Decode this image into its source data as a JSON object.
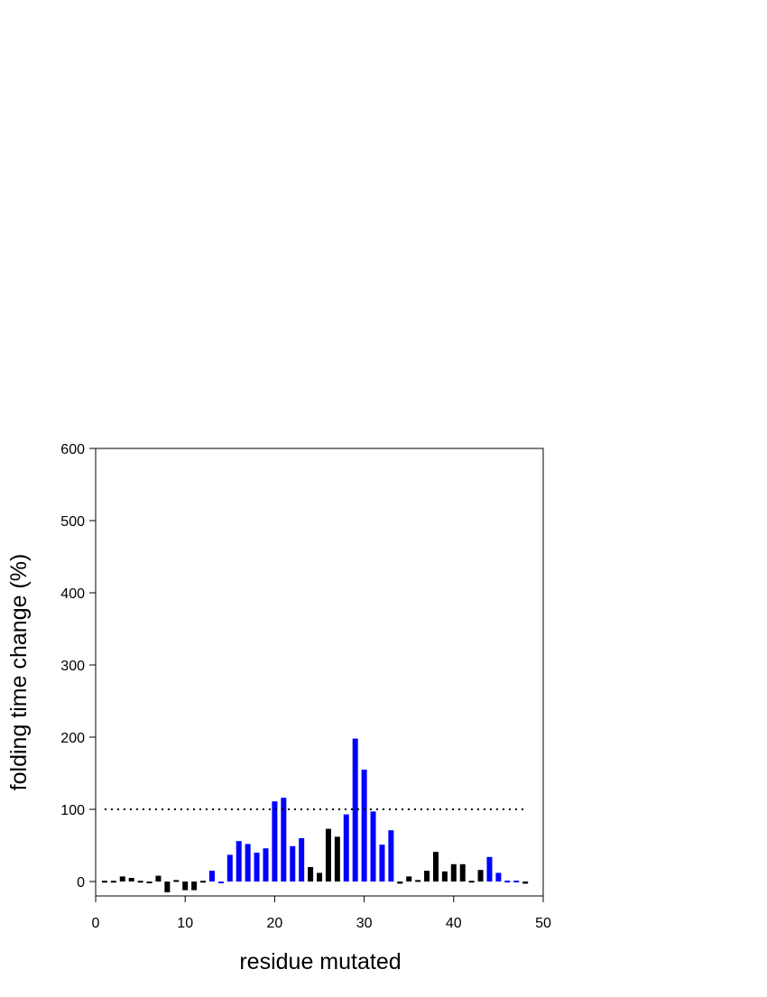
{
  "chart_data": {
    "type": "bar",
    "x_label": "residue mutated",
    "y_label": "folding time change (%)",
    "x": [
      1,
      2,
      3,
      4,
      5,
      6,
      7,
      8,
      9,
      10,
      11,
      12,
      13,
      14,
      15,
      16,
      17,
      18,
      19,
      20,
      21,
      22,
      23,
      24,
      25,
      26,
      27,
      28,
      29,
      30,
      31,
      32,
      33,
      34,
      35,
      36,
      37,
      38,
      39,
      40,
      41,
      42,
      43,
      44,
      45,
      46,
      47,
      48
    ],
    "values": [
      1,
      1,
      7,
      5,
      1,
      -1,
      8,
      -15,
      2,
      -12,
      -12,
      1,
      15,
      -2,
      37,
      56,
      52,
      40,
      46,
      111,
      116,
      49,
      60,
      20,
      12,
      73,
      62,
      93,
      198,
      155,
      97,
      51,
      71,
      -3,
      7,
      2,
      15,
      41,
      14,
      24,
      24,
      1,
      16,
      34,
      12,
      0,
      0,
      -3
    ],
    "colors": [
      "#000000",
      "#000000",
      "#000000",
      "#000000",
      "#000000",
      "#000000",
      "#000000",
      "#000000",
      "#000000",
      "#000000",
      "#000000",
      "#000000",
      "#0000ff",
      "#0000ff",
      "#0000ff",
      "#0000ff",
      "#0000ff",
      "#0000ff",
      "#0000ff",
      "#0000ff",
      "#0000ff",
      "#0000ff",
      "#0000ff",
      "#000000",
      "#000000",
      "#000000",
      "#000000",
      "#0000ff",
      "#0000ff",
      "#0000ff",
      "#0000ff",
      "#0000ff",
      "#0000ff",
      "#000000",
      "#000000",
      "#000000",
      "#000000",
      "#000000",
      "#000000",
      "#000000",
      "#000000",
      "#000000",
      "#000000",
      "#0000ff",
      "#0000ff",
      "#0000ff",
      "#0000ff",
      "#000000"
    ],
    "reference_line": {
      "y": 100,
      "x": [
        1,
        48
      ]
    },
    "xlim": [
      0,
      50
    ],
    "xticks": [
      0,
      10,
      20,
      30,
      40,
      50
    ],
    "ylim": [
      -20,
      600
    ],
    "yticks": [
      0,
      100,
      200,
      300,
      400,
      500,
      600
    ]
  }
}
